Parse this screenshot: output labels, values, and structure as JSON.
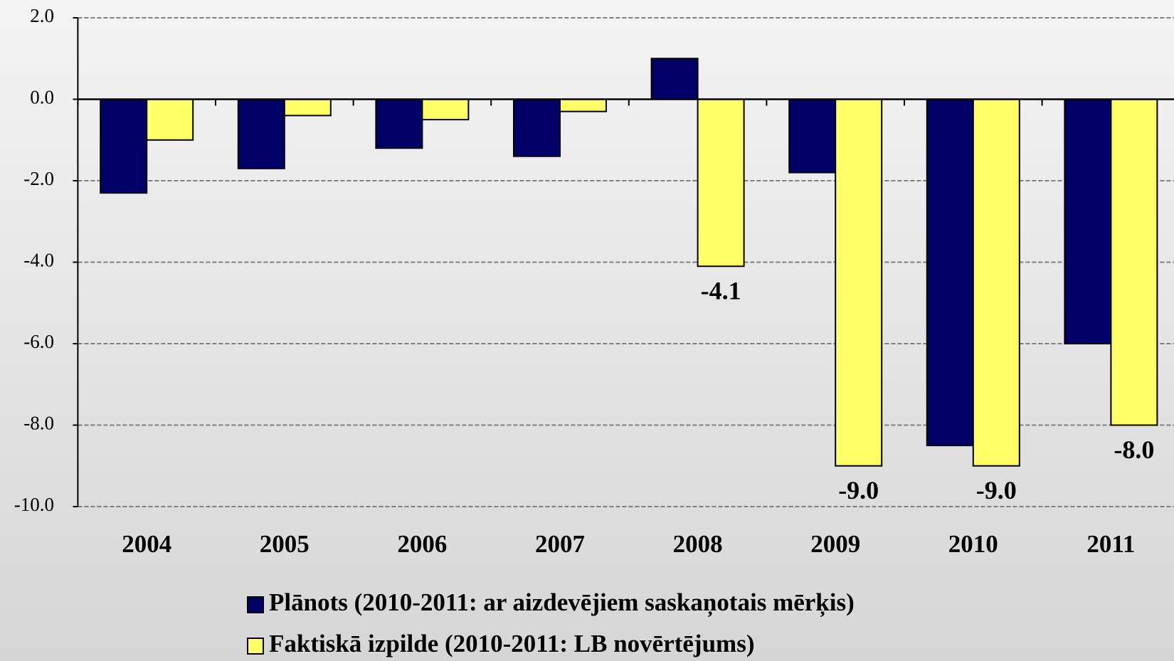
{
  "chart_data": {
    "type": "bar",
    "categories": [
      "2004",
      "2005",
      "2006",
      "2007",
      "2008",
      "2009",
      "2010",
      "2011"
    ],
    "series": [
      {
        "name": "Plānots (2010-2011: ar aizdevējiem saskaņotais mērķis)",
        "color": "#000066",
        "values": [
          -2.3,
          -1.7,
          -1.2,
          -1.4,
          1.0,
          -1.8,
          -8.5,
          -6.0
        ]
      },
      {
        "name": "Faktiskā izpilde (2010-2011: LB novērtējums)",
        "color": "#ffff66",
        "values": [
          -1.0,
          -0.4,
          -0.5,
          -0.3,
          -4.1,
          -9.0,
          -9.0,
          -8.0
        ],
        "value_labels": [
          null,
          null,
          null,
          null,
          "-4.1",
          "-9.0",
          "-9.0",
          "-8.0"
        ]
      }
    ],
    "ylim": [
      -10,
      2
    ],
    "yticks": [
      {
        "value": 2,
        "label": "2.0"
      },
      {
        "value": 0,
        "label": "0.0"
      },
      {
        "value": -2,
        "label": "-2.0"
      },
      {
        "value": -4,
        "label": "-4.0"
      },
      {
        "value": -6,
        "label": "-6.0"
      },
      {
        "value": -8,
        "label": "-8.0"
      },
      {
        "value": -10,
        "label": "-10.0"
      }
    ],
    "grid": true
  }
}
